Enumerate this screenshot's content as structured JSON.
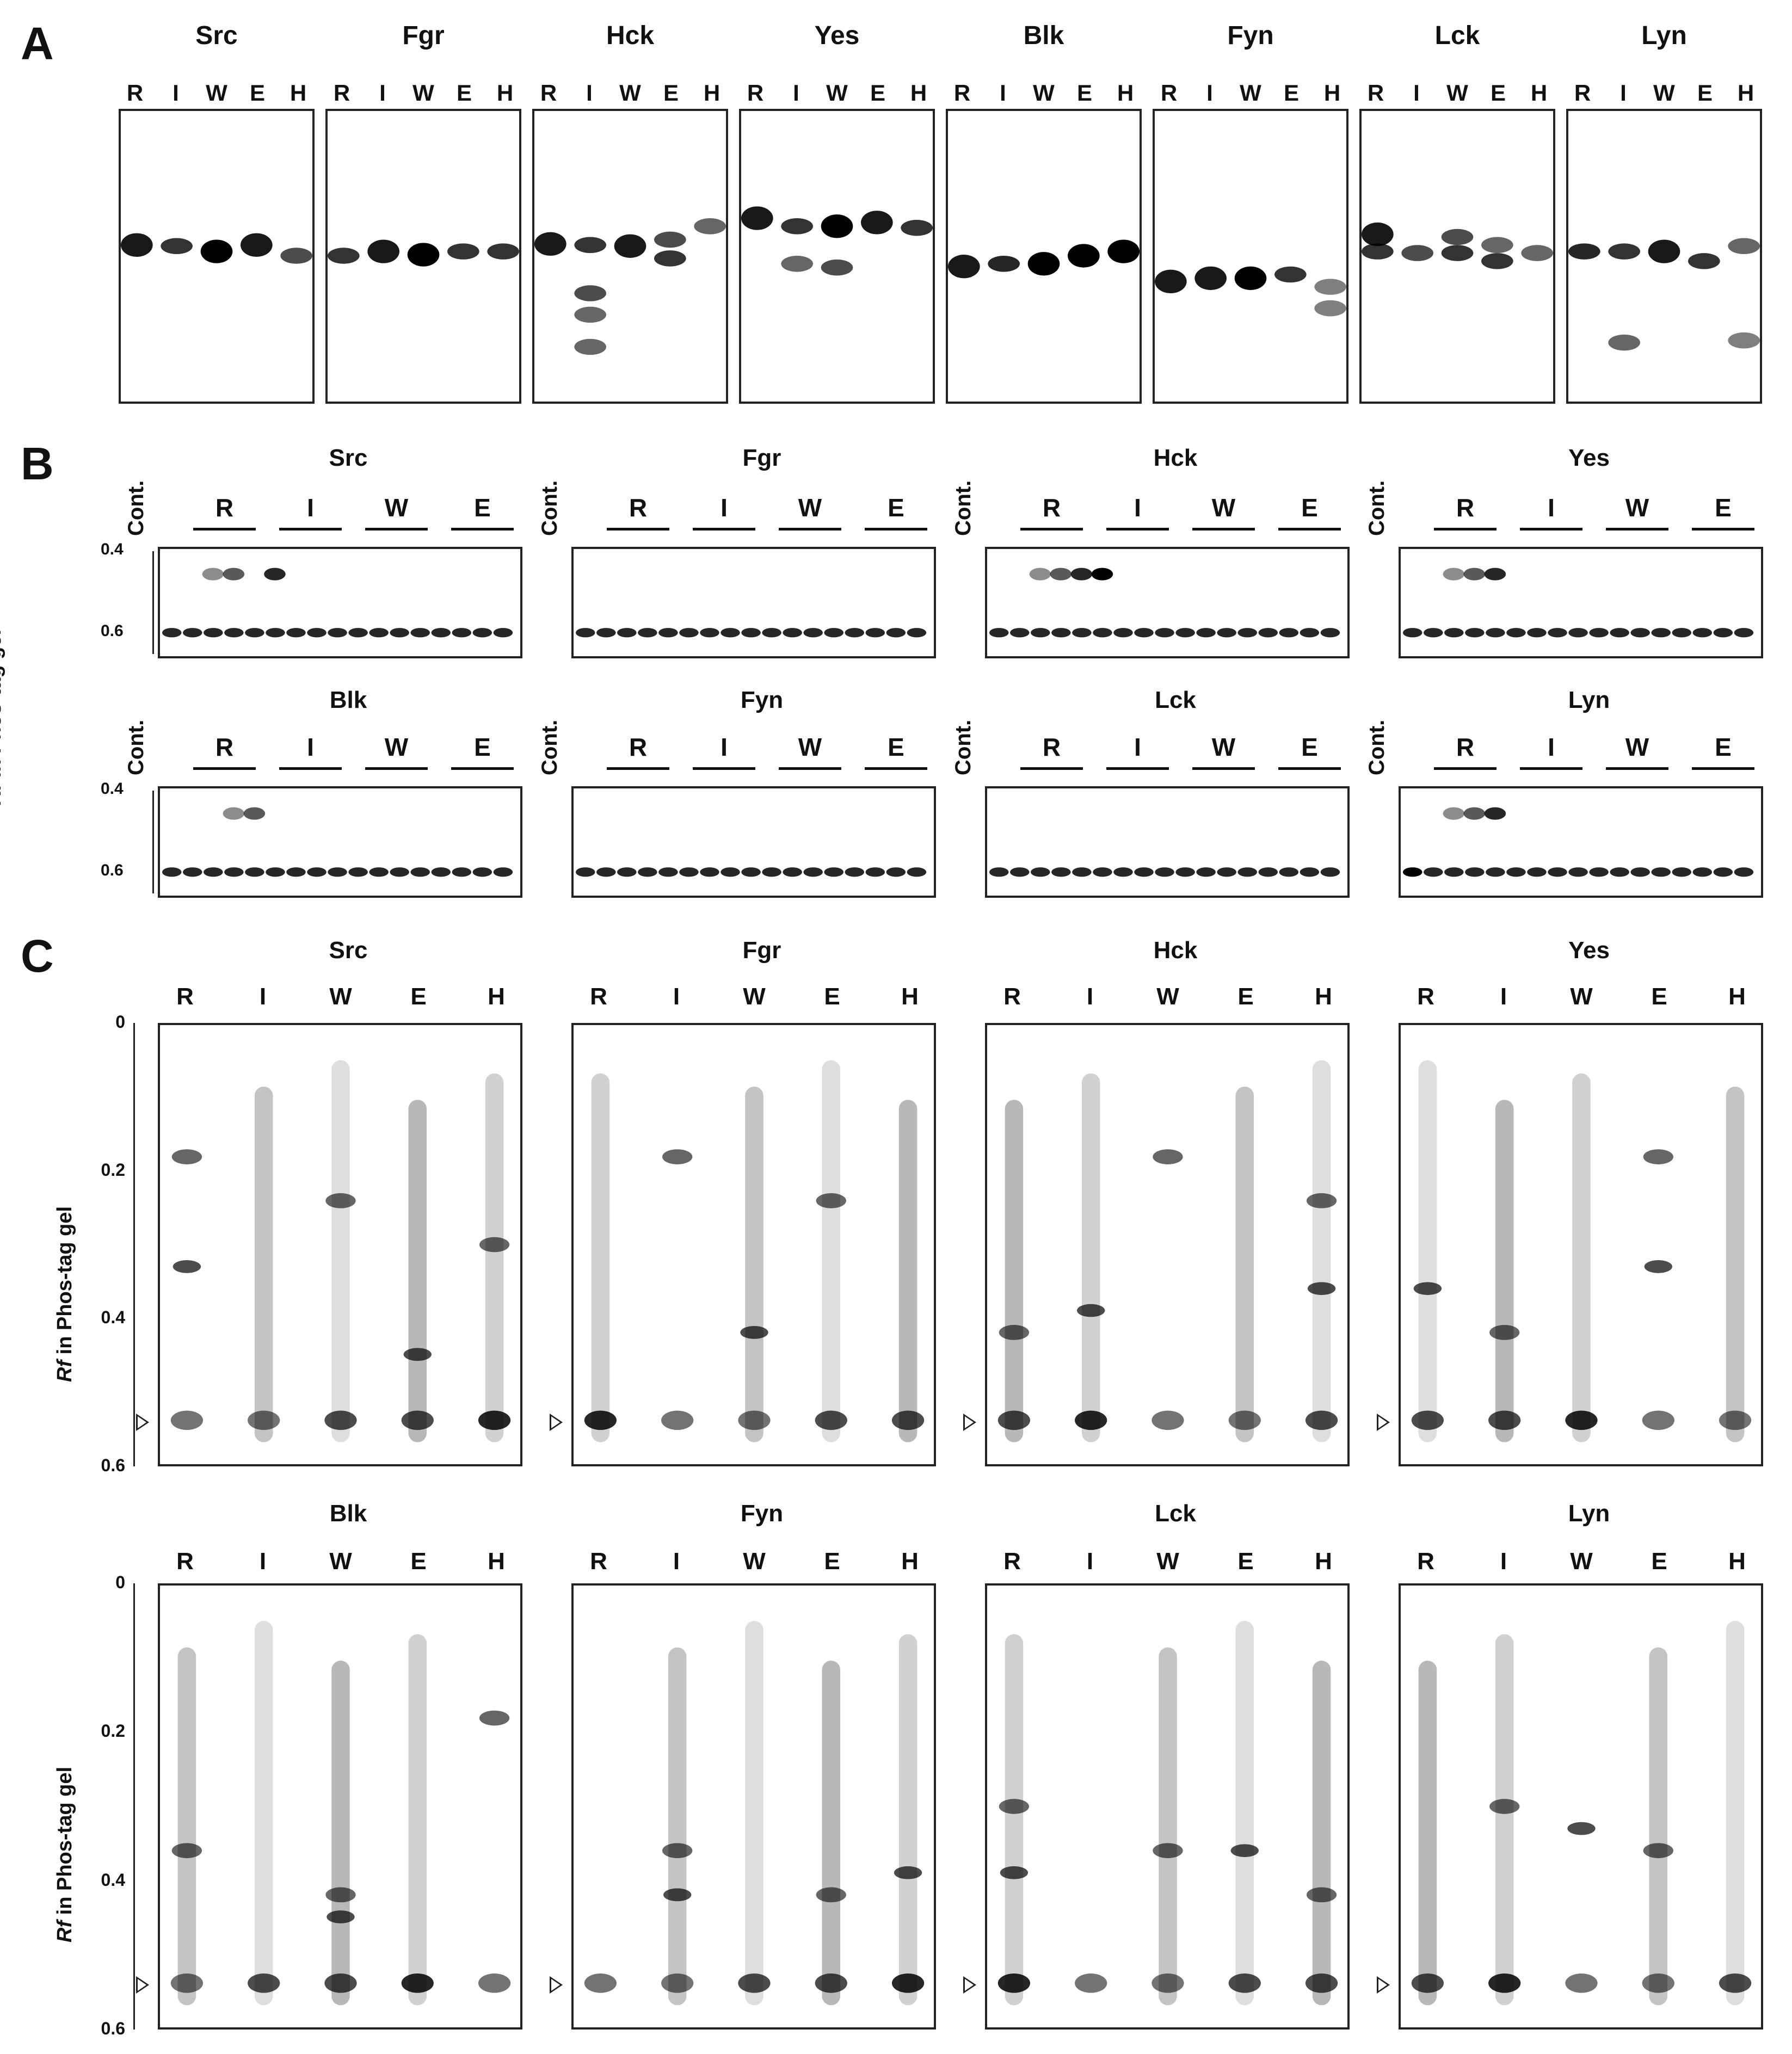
{
  "panels": {
    "a": "A",
    "b": "B",
    "c": "C"
  },
  "kinases": [
    "Src",
    "Fgr",
    "Hck",
    "Yes",
    "Blk",
    "Fyn",
    "Lck",
    "Lyn"
  ],
  "panel_a": {
    "lanes": [
      "R",
      "I",
      "W",
      "E",
      "H"
    ]
  },
  "panel_b": {
    "cont_label": "Cont.",
    "groups": [
      "R",
      "I",
      "W",
      "E"
    ],
    "y_title_rf": "Rf",
    "y_title_rest": " in Phos-tag gel",
    "ticks": [
      "0.4",
      "0.6"
    ]
  },
  "panel_c": {
    "lanes": [
      "R",
      "I",
      "W",
      "E",
      "H"
    ],
    "y_title_rf": "Rf",
    "y_title_rest": " in Phos-tag gel",
    "ticks": [
      "0",
      "0.2",
      "0.4",
      "0.6"
    ]
  }
}
